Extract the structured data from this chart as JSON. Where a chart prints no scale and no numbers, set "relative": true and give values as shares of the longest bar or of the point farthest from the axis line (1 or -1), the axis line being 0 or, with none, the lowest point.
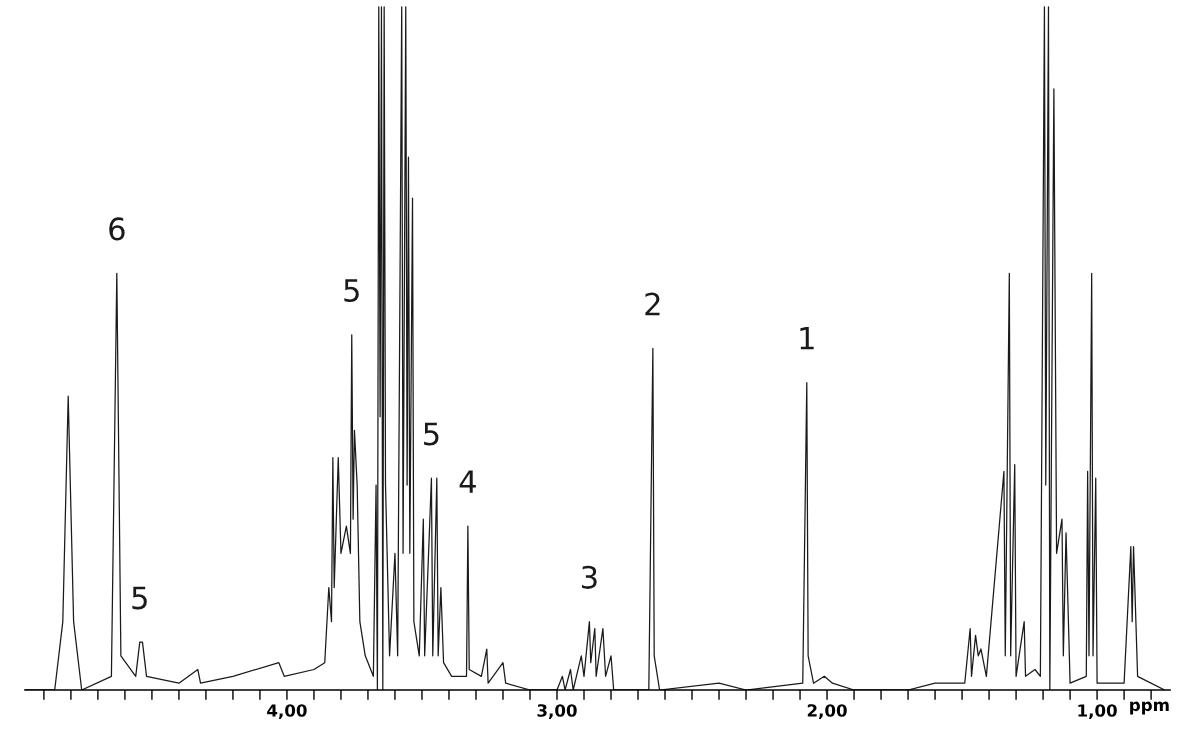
{
  "chart_data": {
    "type": "line",
    "relative": true,
    "xlabel": "ppm",
    "xlim": [
      4.97,
      0.73
    ],
    "xticks": [
      {
        "value": 4.9,
        "label": null
      },
      {
        "value": 4.8,
        "label": null
      },
      {
        "value": 4.7,
        "label": null
      },
      {
        "value": 4.6,
        "label": null
      },
      {
        "value": 4.5,
        "label": null
      },
      {
        "value": 4.4,
        "label": null
      },
      {
        "value": 4.3,
        "label": null
      },
      {
        "value": 4.2,
        "label": null
      },
      {
        "value": 4.1,
        "label": null
      },
      {
        "value": 4.0,
        "label": "4,00"
      },
      {
        "value": 3.9,
        "label": null
      },
      {
        "value": 3.8,
        "label": null
      },
      {
        "value": 3.7,
        "label": null
      },
      {
        "value": 3.6,
        "label": null
      },
      {
        "value": 3.5,
        "label": null
      },
      {
        "value": 3.4,
        "label": null
      },
      {
        "value": 3.3,
        "label": null
      },
      {
        "value": 3.2,
        "label": null
      },
      {
        "value": 3.1,
        "label": null
      },
      {
        "value": 3.0,
        "label": "3,00"
      },
      {
        "value": 2.9,
        "label": null
      },
      {
        "value": 2.8,
        "label": null
      },
      {
        "value": 2.7,
        "label": null
      },
      {
        "value": 2.6,
        "label": null
      },
      {
        "value": 2.5,
        "label": null
      },
      {
        "value": 2.4,
        "label": null
      },
      {
        "value": 2.3,
        "label": null
      },
      {
        "value": 2.2,
        "label": null
      },
      {
        "value": 2.1,
        "label": null
      },
      {
        "value": 2.0,
        "label": "2,00"
      },
      {
        "value": 1.9,
        "label": null
      },
      {
        "value": 1.8,
        "label": null
      },
      {
        "value": 1.7,
        "label": null
      },
      {
        "value": 1.6,
        "label": null
      },
      {
        "value": 1.5,
        "label": null
      },
      {
        "value": 1.4,
        "label": null
      },
      {
        "value": 1.3,
        "label": null
      },
      {
        "value": 1.2,
        "label": null
      },
      {
        "value": 1.1,
        "label": null
      },
      {
        "value": 1.0,
        "label": "1,00"
      },
      {
        "value": 0.9,
        "label": null
      },
      {
        "value": 0.8,
        "label": null
      }
    ],
    "grid": false,
    "legend": false,
    "marker": "none",
    "line_style": "solid",
    "series": [
      {
        "color": "#1a1a1a",
        "x": [
          4.97,
          4.86,
          4.83,
          4.81,
          4.79,
          4.76,
          4.65,
          4.63,
          4.615,
          4.56,
          4.545,
          4.535,
          4.52,
          4.4,
          4.33,
          4.32,
          4.2,
          4.03,
          4.01,
          3.9,
          3.86,
          3.845,
          3.835,
          3.83,
          3.825,
          3.81,
          3.8,
          3.78,
          3.765,
          3.76,
          3.755,
          3.75,
          3.74,
          3.73,
          3.71,
          3.68,
          3.67,
          3.665,
          3.66,
          3.655,
          3.65,
          3.645,
          3.64,
          3.635,
          3.62,
          3.6,
          3.59,
          3.575,
          3.57,
          3.56,
          3.555,
          3.55,
          3.545,
          3.535,
          3.53,
          3.51,
          3.495,
          3.49,
          3.465,
          3.46,
          3.445,
          3.44,
          3.43,
          3.42,
          3.39,
          3.335,
          3.33,
          3.325,
          3.28,
          3.26,
          3.255,
          3.2,
          3.19,
          3.1,
          3.0,
          2.98,
          2.97,
          2.95,
          2.94,
          2.91,
          2.9,
          2.88,
          2.875,
          2.86,
          2.855,
          2.83,
          2.82,
          2.8,
          2.79,
          2.66,
          2.645,
          2.64,
          2.62,
          2.4,
          2.3,
          2.09,
          2.075,
          2.07,
          2.05,
          2.01,
          1.98,
          1.9,
          1.7,
          1.6,
          1.49,
          1.47,
          1.465,
          1.45,
          1.44,
          1.43,
          1.41,
          1.345,
          1.34,
          1.325,
          1.32,
          1.305,
          1.3,
          1.27,
          1.265,
          1.23,
          1.21,
          1.195,
          1.19,
          1.18,
          1.175,
          1.16,
          1.15,
          1.13,
          1.125,
          1.115,
          1.1,
          1.04,
          1.035,
          1.03,
          1.02,
          1.015,
          1.005,
          1.0,
          0.9,
          0.875,
          0.87,
          0.865,
          0.85,
          0.75
        ],
        "values": [
          0.0,
          0.0,
          0.1,
          0.43,
          0.1,
          0.0,
          0.02,
          0.61,
          0.05,
          0.02,
          0.07,
          0.07,
          0.02,
          0.01,
          0.03,
          0.01,
          0.02,
          0.04,
          0.02,
          0.03,
          0.04,
          0.15,
          0.1,
          0.34,
          0.15,
          0.34,
          0.2,
          0.24,
          0.2,
          0.52,
          0.25,
          0.38,
          0.3,
          0.1,
          0.05,
          0.02,
          0.3,
          0.0,
          1,
          0.4,
          1,
          0.0,
          1,
          0.3,
          0.05,
          0.2,
          0.05,
          1,
          0.2,
          1,
          0.3,
          0.78,
          0.2,
          0.72,
          0.1,
          0.05,
          0.25,
          0.05,
          0.31,
          0.05,
          0.31,
          0.05,
          0.15,
          0.04,
          0.02,
          0.02,
          0.24,
          0.03,
          0.02,
          0.06,
          0.01,
          0.04,
          0.01,
          0.0,
          0.0,
          0.02,
          0.0,
          0.03,
          0.0,
          0.05,
          0.02,
          0.1,
          0.04,
          0.09,
          0.02,
          0.09,
          0.02,
          0.05,
          0.0,
          0.0,
          0.5,
          0.05,
          0.0,
          0.01,
          0.0,
          0.01,
          0.45,
          0.05,
          0.01,
          0.02,
          0.01,
          0.0,
          0.0,
          0.01,
          0.01,
          0.09,
          0.02,
          0.08,
          0.05,
          0.06,
          0.02,
          0.32,
          0.05,
          0.61,
          0.05,
          0.33,
          0.02,
          0.1,
          0.02,
          0.03,
          0.02,
          1,
          0.3,
          1,
          0.0,
          0.88,
          0.2,
          0.25,
          0.05,
          0.23,
          0.01,
          0.02,
          0.32,
          0.05,
          0.61,
          0.05,
          0.31,
          0.01,
          0.01,
          0.21,
          0.1,
          0.21,
          0.02,
          0.0
        ]
      }
    ],
    "annotations": [
      {
        "text": "6",
        "x": 4.63,
        "y": 0.61
      },
      {
        "text": "5",
        "x": 4.545,
        "y": 0.07
      },
      {
        "text": "5",
        "x": 3.76,
        "y": 0.52
      },
      {
        "text": "5",
        "x": 3.465,
        "y": 0.31
      },
      {
        "text": "4",
        "x": 3.33,
        "y": 0.24
      },
      {
        "text": "3",
        "x": 2.88,
        "y": 0.1
      },
      {
        "text": "2",
        "x": 2.645,
        "y": 0.5
      },
      {
        "text": "1",
        "x": 2.075,
        "y": 0.45
      }
    ]
  }
}
